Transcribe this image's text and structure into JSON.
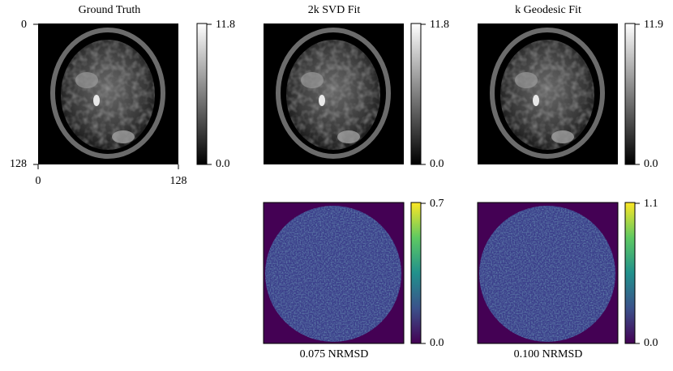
{
  "panels": [
    {
      "title": "Ground Truth",
      "y_axis": [
        "0",
        "128"
      ],
      "x_axis": [
        "0",
        "128"
      ],
      "colorbar": {
        "max": "11.8",
        "min": "0.0"
      }
    },
    {
      "title": "2k SVD Fit",
      "colorbar": {
        "max": "11.8",
        "min": "0.0"
      }
    },
    {
      "title": "k Geodesic Fit",
      "colorbar": {
        "max": "11.9",
        "min": "0.0"
      }
    },
    {
      "caption": "0.075 NRMSD",
      "colorbar": {
        "max": "0.7",
        "min": "0.0"
      }
    },
    {
      "caption": "0.100 NRMSD",
      "colorbar": {
        "max": "1.1",
        "min": "0.0"
      }
    }
  ]
}
